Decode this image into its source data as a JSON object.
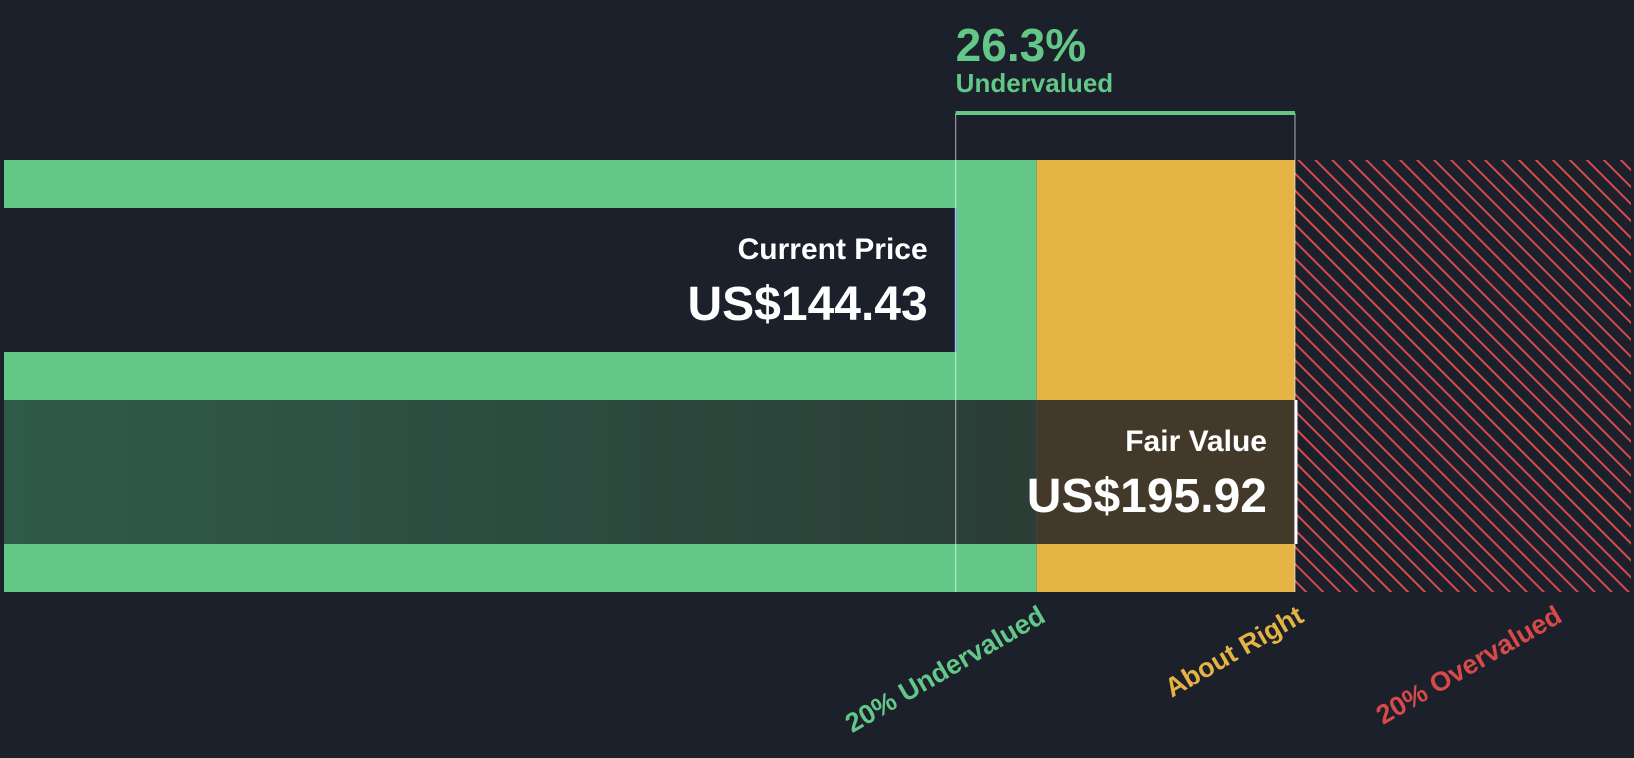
{
  "chart_data": {
    "type": "bar",
    "title": "",
    "difference": {
      "percent": "26.3%",
      "label": "Undervalued",
      "value": 26.3
    },
    "current_price": {
      "label": "Current Price",
      "display": "US$144.43",
      "value": 144.43
    },
    "fair_value": {
      "label": "Fair Value",
      "display": "US$195.92",
      "value": 195.92
    },
    "zones": [
      {
        "name": "20% Undervalued",
        "color": "#63c787",
        "end_ratio": 0.8
      },
      {
        "name": "About Right",
        "color": "#e5b343",
        "end_ratio": 1.0
      },
      {
        "name": "20% Overvalued",
        "color": "#d64a4a",
        "end_ratio": 1.2
      }
    ],
    "colors": {
      "background": "#1b202a",
      "undervalued": "#63c787",
      "about_right": "#e5b343",
      "overvalued": "#d64a4a",
      "fair_value_overlay": "#2a4f42"
    }
  }
}
